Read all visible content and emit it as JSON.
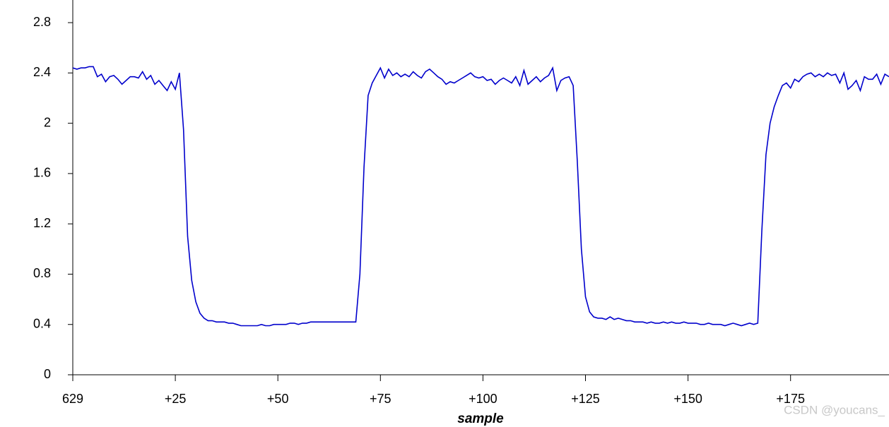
{
  "chart_data": {
    "type": "line",
    "xlabel": "sample",
    "watermark": "CSDN @youcans_",
    "color": "#0000cc",
    "x": [
      629,
      630,
      631,
      632,
      633,
      634,
      635,
      636,
      637,
      638,
      639,
      640,
      641,
      642,
      643,
      644,
      645,
      646,
      647,
      648,
      649,
      650,
      651,
      652,
      653,
      654,
      655,
      656,
      657,
      658,
      659,
      660,
      661,
      662,
      663,
      664,
      665,
      666,
      667,
      668,
      669,
      670,
      671,
      672,
      673,
      674,
      675,
      676,
      677,
      678,
      679,
      680,
      681,
      682,
      683,
      684,
      685,
      686,
      687,
      688,
      689,
      690,
      691,
      692,
      693,
      694,
      695,
      696,
      697,
      698,
      699,
      700,
      701,
      702,
      703,
      704,
      705,
      706,
      707,
      708,
      709,
      710,
      711,
      712,
      713,
      714,
      715,
      716,
      717,
      718,
      719,
      720,
      721,
      722,
      723,
      724,
      725,
      726,
      727,
      728,
      729,
      730,
      731,
      732,
      733,
      734,
      735,
      736,
      737,
      738,
      739,
      740,
      741,
      742,
      743,
      744,
      745,
      746,
      747,
      748,
      749,
      750,
      751,
      752,
      753,
      754,
      755,
      756,
      757,
      758,
      759,
      760,
      761,
      762,
      763,
      764,
      765,
      766,
      767,
      768,
      769,
      770,
      771,
      772,
      773,
      774,
      775,
      776,
      777,
      778,
      779,
      780,
      781,
      782,
      783,
      784,
      785,
      786,
      787,
      788,
      789,
      790,
      791,
      792,
      793,
      794,
      795,
      796,
      797,
      798,
      799,
      800,
      801,
      802,
      803,
      804,
      805,
      806,
      807,
      808,
      809,
      810,
      811,
      812,
      813,
      814,
      815,
      816,
      817,
      818,
      819,
      820,
      821,
      822,
      823,
      824,
      825,
      826,
      827,
      828
    ],
    "values": [
      2.44,
      2.43,
      2.44,
      2.44,
      2.45,
      2.45,
      2.37,
      2.39,
      2.33,
      2.37,
      2.38,
      2.35,
      2.31,
      2.34,
      2.37,
      2.37,
      2.36,
      2.41,
      2.35,
      2.38,
      2.31,
      2.34,
      2.3,
      2.26,
      2.33,
      2.27,
      2.4,
      1.95,
      1.1,
      0.75,
      0.58,
      0.49,
      0.45,
      0.43,
      0.43,
      0.42,
      0.42,
      0.42,
      0.41,
      0.41,
      0.4,
      0.39,
      0.39,
      0.39,
      0.39,
      0.39,
      0.4,
      0.39,
      0.39,
      0.4,
      0.4,
      0.4,
      0.4,
      0.41,
      0.41,
      0.4,
      0.41,
      0.41,
      0.42,
      0.42,
      0.42,
      0.42,
      0.42,
      0.42,
      0.42,
      0.42,
      0.42,
      0.42,
      0.42,
      0.42,
      0.8,
      1.65,
      2.22,
      2.32,
      2.38,
      2.44,
      2.36,
      2.43,
      2.38,
      2.4,
      2.37,
      2.39,
      2.37,
      2.41,
      2.38,
      2.36,
      2.41,
      2.43,
      2.4,
      2.37,
      2.35,
      2.31,
      2.33,
      2.32,
      2.34,
      2.36,
      2.38,
      2.4,
      2.37,
      2.36,
      2.37,
      2.34,
      2.35,
      2.31,
      2.34,
      2.36,
      2.34,
      2.32,
      2.37,
      2.3,
      2.42,
      2.31,
      2.34,
      2.37,
      2.33,
      2.36,
      2.38,
      2.44,
      2.26,
      2.34,
      2.36,
      2.37,
      2.3,
      1.7,
      1.0,
      0.62,
      0.5,
      0.46,
      0.45,
      0.45,
      0.44,
      0.46,
      0.44,
      0.45,
      0.44,
      0.43,
      0.43,
      0.42,
      0.42,
      0.42,
      0.41,
      0.42,
      0.41,
      0.41,
      0.42,
      0.41,
      0.42,
      0.41,
      0.41,
      0.42,
      0.41,
      0.41,
      0.41,
      0.4,
      0.4,
      0.41,
      0.4,
      0.4,
      0.4,
      0.39,
      0.4,
      0.41,
      0.4,
      0.39,
      0.4,
      0.41,
      0.4,
      0.41,
      1.15,
      1.75,
      2.0,
      2.13,
      2.22,
      2.3,
      2.32,
      2.28,
      2.35,
      2.33,
      2.37,
      2.39,
      2.4,
      2.37,
      2.39,
      2.37,
      2.4,
      2.38,
      2.39,
      2.32,
      2.4,
      2.27,
      2.3,
      2.34,
      2.26,
      2.37,
      2.35,
      2.35,
      2.39,
      2.31,
      2.39,
      2.37
    ],
    "xlim": [
      629,
      828
    ],
    "ylim": [
      0,
      2.98
    ],
    "xticks": [
      629,
      {
        "value": 654,
        "label": "+25"
      },
      {
        "value": 679,
        "label": "+50"
      },
      {
        "value": 704,
        "label": "+75"
      },
      {
        "value": 729,
        "label": "+100"
      },
      {
        "value": 754,
        "label": "+125"
      },
      {
        "value": 779,
        "label": "+150"
      },
      {
        "value": 804,
        "label": "+175"
      }
    ],
    "yticks": [
      0,
      0.4,
      0.8,
      1.2,
      1.6,
      2,
      2.4,
      2.8
    ],
    "grid": false
  }
}
